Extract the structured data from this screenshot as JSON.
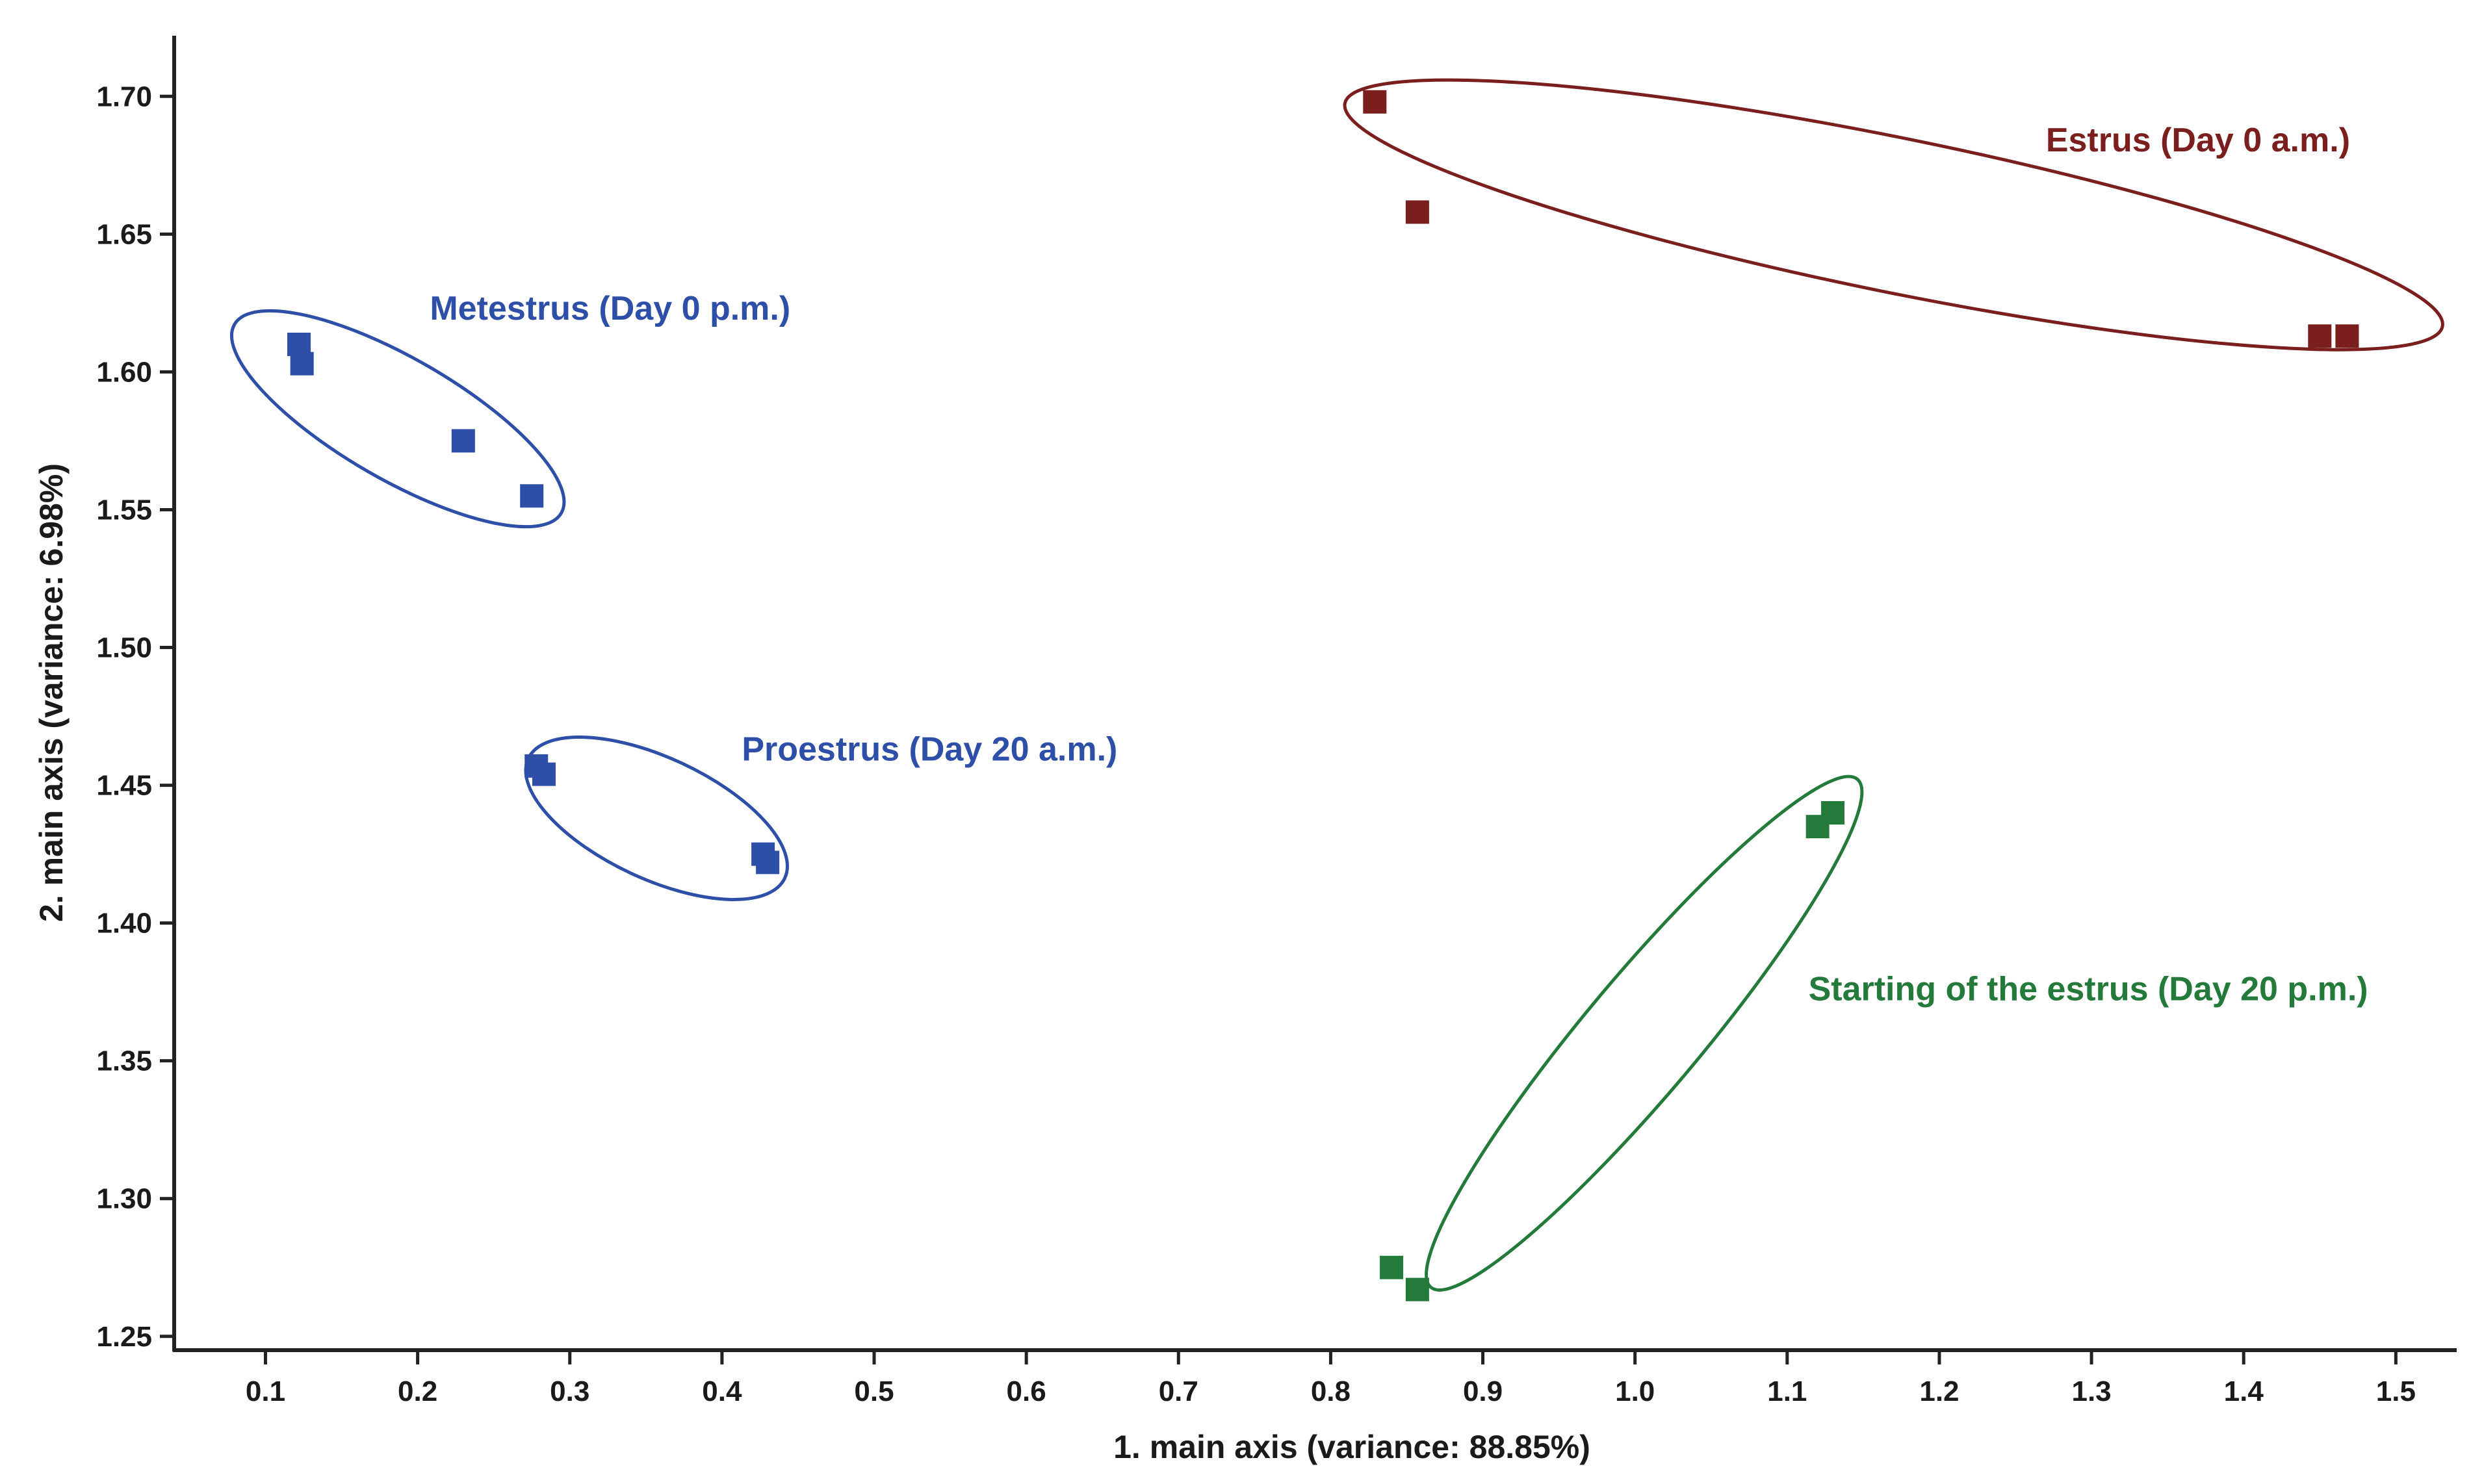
{
  "chart_data": {
    "type": "scatter",
    "title": "",
    "xlabel": "1. main axis (variance: 88.85%)",
    "ylabel": "2. main axis (variance: 6.98%)",
    "xlim": [
      0.04,
      1.54
    ],
    "ylim": [
      1.245,
      1.722
    ],
    "grid": false,
    "legend": "none",
    "x_ticks": [
      0.1,
      0.2,
      0.3,
      0.4,
      0.5,
      0.6,
      0.7,
      0.8,
      0.9,
      1.0,
      1.1,
      1.2,
      1.3,
      1.4,
      1.5
    ],
    "x_tick_labels": [
      "0.1",
      "0.2",
      "0.3",
      "0.4",
      "0.5",
      "0.6",
      "0.7",
      "0.8",
      "0.9",
      "1.0",
      "1.1",
      "1.2",
      "1.3",
      "1.4",
      "1.5"
    ],
    "y_ticks": [
      1.25,
      1.3,
      1.35,
      1.4,
      1.45,
      1.5,
      1.55,
      1.6,
      1.65,
      1.7
    ],
    "y_tick_labels": [
      "1.25",
      "1.30",
      "1.35",
      "1.40",
      "1.45",
      "1.50",
      "1.55",
      "1.60",
      "1.65",
      "1.70"
    ],
    "series": [
      {
        "name": "Estrus (Day 0 a.m.)",
        "color": "#7a1e1e",
        "label_at": [
          1.27,
          1.68
        ],
        "points": [
          [
            0.829,
            1.698
          ],
          [
            0.857,
            1.658
          ],
          [
            1.45,
            1.613
          ],
          [
            1.468,
            1.613
          ]
        ],
        "ellipse": {
          "cx": 1.17,
          "cy": 1.657,
          "rx": 0.368,
          "ry": 0.028,
          "rotate_deg": 11.5
        }
      },
      {
        "name": "Metestrus (Day 0 p.m.)",
        "color": "#2e4fa8",
        "label_at": [
          0.208,
          1.619
        ],
        "points": [
          [
            0.122,
            1.61
          ],
          [
            0.124,
            1.603
          ],
          [
            0.23,
            1.575
          ],
          [
            0.275,
            1.555
          ]
        ],
        "ellipse": {
          "cx": 0.187,
          "cy": 1.583,
          "rx": 0.124,
          "ry": 0.022,
          "rotate_deg": 30
        }
      },
      {
        "name": "Proestrus (Day 20 a.m.)",
        "color": "#2e4fa8",
        "label_at": [
          0.413,
          1.459
        ],
        "points": [
          [
            0.278,
            1.457
          ],
          [
            0.283,
            1.454
          ],
          [
            0.427,
            1.425
          ],
          [
            0.43,
            1.422
          ]
        ],
        "ellipse": {
          "cx": 0.357,
          "cy": 1.438,
          "rx": 0.093,
          "ry": 0.022,
          "rotate_deg": 25
        }
      },
      {
        "name": "Starting of the estrus (Day 20 p.m.)",
        "color": "#237a3a",
        "label_at": [
          1.114,
          1.372
        ],
        "points": [
          [
            0.84,
            1.275
          ],
          [
            0.857,
            1.267
          ],
          [
            1.12,
            1.435
          ],
          [
            1.13,
            1.44
          ]
        ],
        "ellipse": {
          "cx": 1.006,
          "cy": 1.36,
          "rx": 0.218,
          "ry": 0.021,
          "rotate_deg": -50
        }
      }
    ]
  }
}
